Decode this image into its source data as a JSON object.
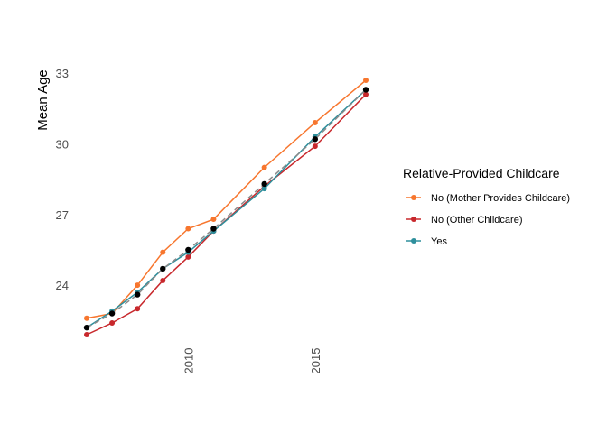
{
  "chart_data": {
    "type": "line",
    "title": "",
    "xlabel": "",
    "ylabel": "Mean Age",
    "x_ticks": [
      "2010",
      "2015"
    ],
    "y_ticks": [
      "24",
      "27",
      "30",
      "33"
    ],
    "xlim": [
      2006,
      2017
    ],
    "ylim": [
      21.9,
      32.7
    ],
    "grid": false,
    "legend": {
      "title": "Relative-Provided Childcare",
      "position": "right"
    },
    "x": [
      2006,
      2007,
      2008,
      2009,
      2010,
      2011,
      2013,
      2015,
      2017
    ],
    "series": [
      {
        "name": "No (Mother Provides Childcare)",
        "color": "#f7762e",
        "values": [
          22.6,
          22.8,
          24.0,
          25.4,
          26.4,
          26.8,
          29.0,
          30.9,
          32.7
        ]
      },
      {
        "name": "No (Other Childcare)",
        "color": "#c8282c",
        "values": [
          21.9,
          22.4,
          23.0,
          24.2,
          25.2,
          26.3,
          28.2,
          29.9,
          32.1
        ]
      },
      {
        "name": "Yes",
        "color": "#2e8f9c",
        "values": [
          22.2,
          22.9,
          23.7,
          24.7,
          25.4,
          26.3,
          28.1,
          30.3,
          32.3
        ]
      }
    ],
    "overall_trend": {
      "color": "#000000",
      "line_color": "#8a8a8a",
      "values": [
        22.2,
        22.8,
        23.6,
        24.7,
        25.5,
        26.4,
        28.3,
        30.2,
        32.3
      ]
    }
  }
}
